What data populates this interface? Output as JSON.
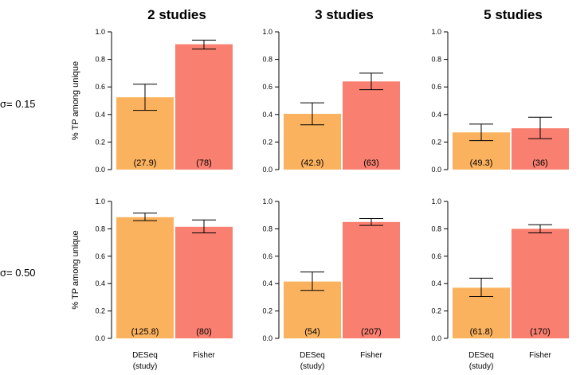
{
  "colors": {
    "deseq": "#FBB25E",
    "fisher": "#F98070"
  },
  "chart_data": {
    "type": "bar",
    "columns": [
      "2 studies",
      "3 studies",
      "5 studies"
    ],
    "rows": [
      "σ= 0.15",
      "σ= 0.50"
    ],
    "ylabel": "% TP among unique",
    "ylim": [
      0,
      1.0
    ],
    "yticks": [
      "0.0",
      "0.2",
      "0.4",
      "0.6",
      "0.8",
      "1.0"
    ],
    "categories": [
      {
        "line1": "DESeq",
        "line2": "(study)"
      },
      {
        "line1": "Fisher",
        "line2": ""
      }
    ],
    "panels": [
      {
        "row": 0,
        "col": 0,
        "bars": [
          {
            "value": 0.525,
            "err_low": 0.43,
            "err_high": 0.62,
            "label": "(27.9)"
          },
          {
            "value": 0.91,
            "err_low": 0.875,
            "err_high": 0.94,
            "label": "(78)"
          }
        ]
      },
      {
        "row": 0,
        "col": 1,
        "bars": [
          {
            "value": 0.405,
            "err_low": 0.325,
            "err_high": 0.485,
            "label": "(42.9)"
          },
          {
            "value": 0.64,
            "err_low": 0.58,
            "err_high": 0.7,
            "label": "(63)"
          }
        ]
      },
      {
        "row": 0,
        "col": 2,
        "bars": [
          {
            "value": 0.27,
            "err_low": 0.21,
            "err_high": 0.33,
            "label": "(49.3)"
          },
          {
            "value": 0.3,
            "err_low": 0.225,
            "err_high": 0.38,
            "label": "(36)"
          }
        ]
      },
      {
        "row": 1,
        "col": 0,
        "bars": [
          {
            "value": 0.885,
            "err_low": 0.86,
            "err_high": 0.915,
            "label": "(125.8)"
          },
          {
            "value": 0.815,
            "err_low": 0.77,
            "err_high": 0.865,
            "label": "(80)"
          }
        ]
      },
      {
        "row": 1,
        "col": 1,
        "bars": [
          {
            "value": 0.415,
            "err_low": 0.35,
            "err_high": 0.485,
            "label": "(54)"
          },
          {
            "value": 0.85,
            "err_low": 0.825,
            "err_high": 0.875,
            "label": "(207)"
          }
        ]
      },
      {
        "row": 1,
        "col": 2,
        "bars": [
          {
            "value": 0.37,
            "err_low": 0.305,
            "err_high": 0.44,
            "label": "(61.8)"
          },
          {
            "value": 0.8,
            "err_low": 0.77,
            "err_high": 0.83,
            "label": "(170)"
          }
        ]
      }
    ]
  }
}
